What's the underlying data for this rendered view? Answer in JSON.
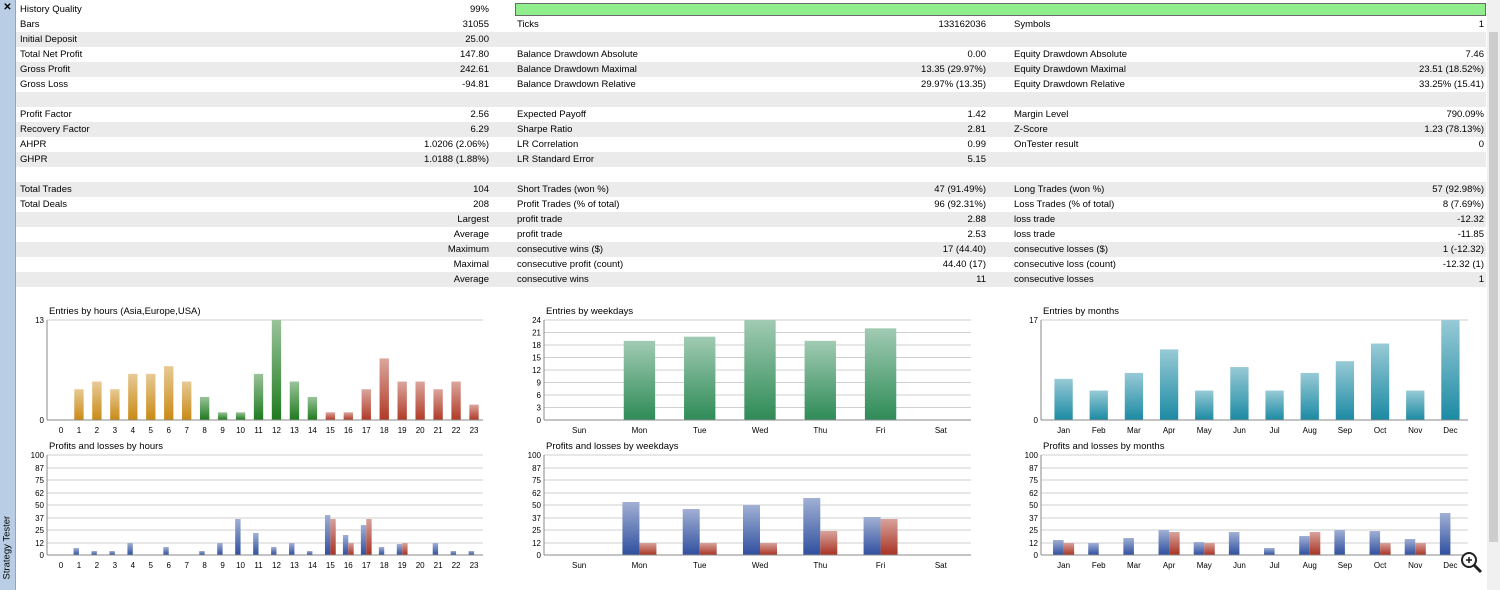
{
  "window": {
    "side_title": "Strategy Tester",
    "close_glyph": "✕"
  },
  "history_quality": {
    "label": "History Quality",
    "value": "99%",
    "fraction": 0.99
  },
  "rows": [
    {
      "shade": false,
      "c1": "Bars",
      "v1": "31055",
      "c2": "Ticks",
      "v2": "133162036",
      "c3": "Symbols",
      "v3": "1"
    },
    {
      "shade": true,
      "c1": "Initial Deposit",
      "v1": "25.00",
      "c2": "",
      "v2": "",
      "c3": "",
      "v3": ""
    },
    {
      "shade": false,
      "c1": "Total Net Profit",
      "v1": "147.80",
      "c2": "Balance Drawdown Absolute",
      "v2": "0.00",
      "c3": "Equity Drawdown Absolute",
      "v3": "7.46"
    },
    {
      "shade": true,
      "c1": "Gross Profit",
      "v1": "242.61",
      "c2": "Balance Drawdown Maximal",
      "v2": "13.35 (29.97%)",
      "c3": "Equity Drawdown Maximal",
      "v3": "23.51 (18.52%)"
    },
    {
      "shade": false,
      "c1": "Gross Loss",
      "v1": "-94.81",
      "c2": "Balance Drawdown Relative",
      "v2": "29.97% (13.35)",
      "c3": "Equity Drawdown Relative",
      "v3": "33.25% (15.41)"
    },
    {
      "shade": true,
      "c1": "",
      "v1": "",
      "c2": "",
      "v2": "",
      "c3": "",
      "v3": ""
    },
    {
      "shade": false,
      "c1": "Profit Factor",
      "v1": "2.56",
      "c2": "Expected Payoff",
      "v2": "1.42",
      "c3": "Margin Level",
      "v3": "790.09%"
    },
    {
      "shade": true,
      "c1": "Recovery Factor",
      "v1": "6.29",
      "c2": "Sharpe Ratio",
      "v2": "2.81",
      "c3": "Z-Score",
      "v3": "1.23 (78.13%)"
    },
    {
      "shade": false,
      "c1": "AHPR",
      "v1": "1.0206 (2.06%)",
      "c2": "LR Correlation",
      "v2": "0.99",
      "c3": "OnTester result",
      "v3": "0"
    },
    {
      "shade": true,
      "c1": "GHPR",
      "v1": "1.0188 (1.88%)",
      "c2": "LR Standard Error",
      "v2": "5.15",
      "c3": "",
      "v3": ""
    },
    {
      "shade": false,
      "c1": "",
      "v1": "",
      "c2": "",
      "v2": "",
      "c3": "",
      "v3": ""
    },
    {
      "shade": true,
      "c1": "Total Trades",
      "v1": "104",
      "c2": "Short Trades (won %)",
      "v2": "47 (91.49%)",
      "c3": "Long Trades (won %)",
      "v3": "57 (92.98%)"
    },
    {
      "shade": false,
      "c1": "Total Deals",
      "v1": "208",
      "c2": "Profit Trades (% of total)",
      "v2": "96 (92.31%)",
      "c3": "Loss Trades (% of total)",
      "v3": "8 (7.69%)"
    },
    {
      "shade": true,
      "c1": "",
      "v1": "Largest",
      "c2": "profit trade",
      "v2": "2.88",
      "c3": "loss trade",
      "v3": "-12.32"
    },
    {
      "shade": false,
      "c1": "",
      "v1": "Average",
      "c2": "profit trade",
      "v2": "2.53",
      "c3": "loss trade",
      "v3": "-11.85"
    },
    {
      "shade": true,
      "c1": "",
      "v1": "Maximum",
      "c2": "consecutive wins ($)",
      "v2": "17 (44.40)",
      "c3": "consecutive losses ($)",
      "v3": "1 (-12.32)"
    },
    {
      "shade": false,
      "c1": "",
      "v1": "Maximal",
      "c2": "consecutive profit (count)",
      "v2": "44.40 (17)",
      "c3": "consecutive loss (count)",
      "v3": "-12.32 (1)"
    },
    {
      "shade": true,
      "c1": "",
      "v1": "Average",
      "c2": "consecutive wins",
      "v2": "11",
      "c3": "consecutive losses",
      "v3": "1"
    },
    {
      "shade": false,
      "c1": "",
      "v1": "",
      "c2": "",
      "v2": "",
      "c3": "",
      "v3": ""
    }
  ],
  "colors": {
    "green_bar": "#90ee8c",
    "shade": "#ebebeb",
    "blue": "#2f4f9f",
    "red": "#a83222"
  },
  "chart_data": [
    {
      "type": "bar",
      "title": "Entries by hours (Asia,Europe,USA)",
      "categories": [
        "0",
        "1",
        "2",
        "3",
        "4",
        "5",
        "6",
        "7",
        "8",
        "9",
        "10",
        "11",
        "12",
        "13",
        "14",
        "15",
        "16",
        "17",
        "18",
        "19",
        "20",
        "21",
        "22",
        "23"
      ],
      "values": [
        0,
        4,
        5,
        4,
        6,
        6,
        7,
        5,
        3,
        1,
        1,
        6,
        13,
        5,
        3,
        1,
        1,
        4,
        8,
        5,
        5,
        4,
        5,
        2
      ],
      "yticks": [
        "0",
        "13"
      ],
      "ylim": [
        0,
        13
      ],
      "colors": [
        "#c98a14",
        "#c98a14",
        "#c98a14",
        "#c98a14",
        "#c98a14",
        "#c98a14",
        "#c98a14",
        "#c98a14",
        "#1e7a1e",
        "#1e7a1e",
        "#1e7a1e",
        "#1e7a1e",
        "#1e7a1e",
        "#1e7a1e",
        "#1e7a1e",
        "#b03a26",
        "#b03a26",
        "#b03a26",
        "#b03a26",
        "#b03a26",
        "#b03a26",
        "#b03a26",
        "#b03a26",
        "#b03a26"
      ]
    },
    {
      "type": "bar",
      "title": "Entries by weekdays",
      "categories": [
        "Sun",
        "Mon",
        "Tue",
        "Wed",
        "Thu",
        "Fri",
        "Sat"
      ],
      "values": [
        0,
        19,
        20,
        24,
        19,
        22,
        0
      ],
      "yticks": [
        "0",
        "3",
        "6",
        "9",
        "12",
        "15",
        "18",
        "21",
        "24"
      ],
      "ylim": [
        0,
        24
      ],
      "colors": [
        "#2e8b57"
      ]
    },
    {
      "type": "bar",
      "title": "Entries by months",
      "categories": [
        "Jan",
        "Feb",
        "Mar",
        "Apr",
        "May",
        "Jun",
        "Jul",
        "Aug",
        "Sep",
        "Oct",
        "Nov",
        "Dec"
      ],
      "values": [
        7,
        5,
        8,
        12,
        5,
        9,
        5,
        8,
        10,
        13,
        5,
        17
      ],
      "yticks": [
        "0",
        "17"
      ],
      "ylim": [
        0,
        17
      ],
      "colors": [
        "#1b8aa3"
      ]
    },
    {
      "type": "bar",
      "title": "Profits and losses by hours",
      "categories": [
        "0",
        "1",
        "2",
        "3",
        "4",
        "5",
        "6",
        "7",
        "8",
        "9",
        "10",
        "11",
        "12",
        "13",
        "14",
        "15",
        "16",
        "17",
        "18",
        "19",
        "20",
        "21",
        "22",
        "23"
      ],
      "series": [
        {
          "values": [
            0,
            7,
            4,
            4,
            12,
            0,
            8,
            0,
            4,
            12,
            36,
            22,
            8,
            12,
            4,
            40,
            20,
            30,
            8,
            11,
            0,
            12,
            4,
            4
          ]
        },
        {
          "values": [
            0,
            0,
            0,
            0,
            0,
            0,
            0,
            0,
            0,
            0,
            0,
            0,
            0,
            0,
            0,
            36,
            12,
            36,
            0,
            12,
            0,
            0,
            0,
            0
          ]
        }
      ],
      "yticks": [
        "0",
        "12",
        "25",
        "37",
        "50",
        "62",
        "75",
        "87",
        "100"
      ],
      "ylim": [
        0,
        100
      ]
    },
    {
      "type": "bar",
      "title": "Profits and losses by weekdays",
      "categories": [
        "Sun",
        "Mon",
        "Tue",
        "Wed",
        "Thu",
        "Fri",
        "Sat"
      ],
      "series": [
        {
          "values": [
            0,
            53,
            46,
            50,
            57,
            38,
            0
          ]
        },
        {
          "values": [
            0,
            12,
            12,
            12,
            24,
            36,
            0
          ]
        }
      ],
      "yticks": [
        "0",
        "12",
        "25",
        "37",
        "50",
        "62",
        "75",
        "87",
        "100"
      ],
      "ylim": [
        0,
        100
      ]
    },
    {
      "type": "bar",
      "title": "Profits and losses by months",
      "categories": [
        "Jan",
        "Feb",
        "Mar",
        "Apr",
        "May",
        "Jun",
        "Jul",
        "Aug",
        "Sep",
        "Oct",
        "Nov",
        "Dec"
      ],
      "series": [
        {
          "values": [
            15,
            12,
            17,
            25,
            13,
            23,
            7,
            19,
            25,
            24,
            16,
            42
          ]
        },
        {
          "values": [
            12,
            0,
            0,
            23,
            12,
            0,
            0,
            23,
            0,
            12,
            12,
            0
          ]
        }
      ],
      "yticks": [
        "0",
        "12",
        "25",
        "37",
        "50",
        "62",
        "75",
        "87",
        "100"
      ],
      "ylim": [
        0,
        100
      ]
    }
  ]
}
